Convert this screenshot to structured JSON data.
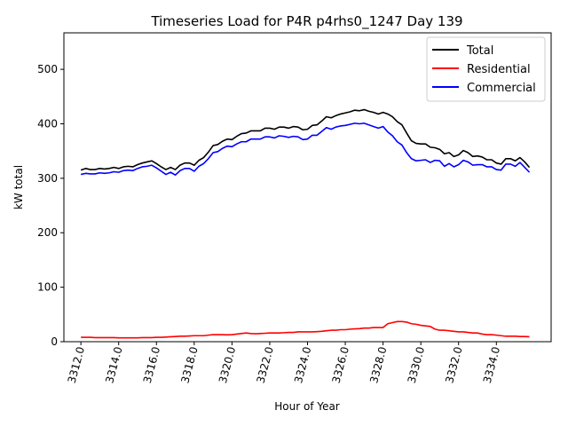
{
  "chart_data": {
    "type": "line",
    "title": "Timeseries Load for P4R p4rhs0_1247  Day 139",
    "xlabel": "Hour of Year",
    "ylabel": "kW total",
    "xlim": [
      3311.1,
      3336.9
    ],
    "ylim": [
      0,
      567
    ],
    "x_ticks": [
      3312,
      3314,
      3316,
      3318,
      3320,
      3322,
      3324,
      3326,
      3328,
      3330,
      3332,
      3334
    ],
    "x_tick_labels": [
      "3312.0",
      "3314.0",
      "3316.0",
      "3318.0",
      "3320.0",
      "3322.0",
      "3324.0",
      "3326.0",
      "3328.0",
      "3330.0",
      "3332.0",
      "3334.0"
    ],
    "y_ticks": [
      0,
      100,
      200,
      300,
      400,
      500
    ],
    "y_tick_labels": [
      "0",
      "100",
      "200",
      "300",
      "400",
      "500"
    ],
    "grid": false,
    "legend": {
      "location": "top-right",
      "entries": [
        "Total",
        "Residential",
        "Commercial"
      ]
    },
    "x": [
      3312.0,
      3312.25,
      3312.5,
      3312.75,
      3313.0,
      3313.25,
      3313.5,
      3313.75,
      3314.0,
      3314.25,
      3314.5,
      3314.75,
      3315.0,
      3315.25,
      3315.5,
      3315.75,
      3316.0,
      3316.25,
      3316.5,
      3316.75,
      3317.0,
      3317.25,
      3317.5,
      3317.75,
      3318.0,
      3318.25,
      3318.5,
      3318.75,
      3319.0,
      3319.25,
      3319.5,
      3319.75,
      3320.0,
      3320.25,
      3320.5,
      3320.75,
      3321.0,
      3321.25,
      3321.5,
      3321.75,
      3322.0,
      3322.25,
      3322.5,
      3322.75,
      3323.0,
      3323.25,
      3323.5,
      3323.75,
      3324.0,
      3324.25,
      3324.5,
      3324.75,
      3325.0,
      3325.25,
      3325.5,
      3325.75,
      3326.0,
      3326.25,
      3326.5,
      3326.75,
      3327.0,
      3327.25,
      3327.5,
      3327.75,
      3328.0,
      3328.25,
      3328.5,
      3328.75,
      3329.0,
      3329.25,
      3329.5,
      3329.75,
      3330.0,
      3330.25,
      3330.5,
      3330.75,
      3331.0,
      3331.25,
      3331.5,
      3331.75,
      3332.0,
      3332.25,
      3332.5,
      3332.75,
      3333.0,
      3333.25,
      3333.5,
      3333.75,
      3334.0,
      3334.25,
      3334.5,
      3334.75,
      3335.0,
      3335.25,
      3335.5,
      3335.75
    ],
    "series": [
      {
        "name": "Total",
        "color": "#000000",
        "values": [
          315,
          318,
          316,
          316,
          318,
          317,
          318,
          320,
          318,
          321,
          322,
          321,
          325,
          328,
          330,
          332,
          327,
          321,
          316,
          320,
          316,
          324,
          328,
          328,
          324,
          333,
          338,
          348,
          360,
          362,
          368,
          372,
          371,
          377,
          382,
          383,
          387,
          387,
          387,
          392,
          392,
          390,
          394,
          394,
          392,
          395,
          394,
          389,
          390,
          397,
          398,
          405,
          413,
          411,
          415,
          418,
          420,
          422,
          425,
          424,
          426,
          423,
          421,
          418,
          421,
          418,
          413,
          404,
          398,
          383,
          369,
          364,
          363,
          363,
          357,
          356,
          353,
          345,
          347,
          340,
          343,
          351,
          347,
          340,
          341,
          339,
          334,
          334,
          328,
          326,
          336,
          336,
          332,
          338,
          330,
          320
        ]
      },
      {
        "name": "Residential",
        "color": "#ff0000",
        "values": [
          8,
          8,
          8,
          7.5,
          7.5,
          7.5,
          7.5,
          7.5,
          7,
          7,
          7,
          7,
          7,
          7.5,
          7.5,
          7.5,
          8,
          8,
          8.5,
          9,
          9.5,
          10,
          10,
          10.5,
          11,
          11,
          11,
          12,
          13,
          13,
          13,
          12.5,
          13,
          14,
          15,
          16,
          15,
          14.5,
          15,
          15.5,
          16,
          16,
          16,
          16.5,
          17,
          17,
          18,
          18,
          18,
          18,
          18.5,
          19,
          20,
          21,
          21,
          22,
          22,
          23,
          23.5,
          24,
          25,
          25,
          26,
          26,
          26,
          33,
          35,
          37,
          37,
          36,
          33,
          32,
          30,
          29,
          28,
          23,
          21,
          21,
          20,
          19,
          18,
          18,
          17,
          16,
          16,
          14,
          13,
          13,
          12,
          11,
          10,
          10,
          10,
          9.5,
          9.5,
          9
        ]
      },
      {
        "name": "Commercial",
        "color": "#0000ff",
        "values": [
          307,
          309,
          308,
          308,
          310,
          309,
          310,
          312,
          311,
          314,
          315,
          314,
          318,
          321,
          322,
          324,
          319,
          313,
          307,
          311,
          306,
          314,
          318,
          318,
          313,
          322,
          327,
          336,
          347,
          349,
          355,
          359,
          358,
          363,
          367,
          367,
          372,
          372,
          372,
          376,
          376,
          374,
          378,
          377,
          375,
          377,
          376,
          371,
          372,
          379,
          379,
          386,
          393,
          390,
          394,
          396,
          397,
          399,
          401,
          400,
          401,
          398,
          395,
          392,
          395,
          385,
          378,
          367,
          361,
          347,
          336,
          332,
          333,
          334,
          329,
          333,
          332,
          322,
          327,
          321,
          325,
          333,
          330,
          324,
          325,
          325,
          321,
          321,
          316,
          315,
          326,
          326,
          322,
          329,
          320,
          311
        ]
      }
    ]
  }
}
